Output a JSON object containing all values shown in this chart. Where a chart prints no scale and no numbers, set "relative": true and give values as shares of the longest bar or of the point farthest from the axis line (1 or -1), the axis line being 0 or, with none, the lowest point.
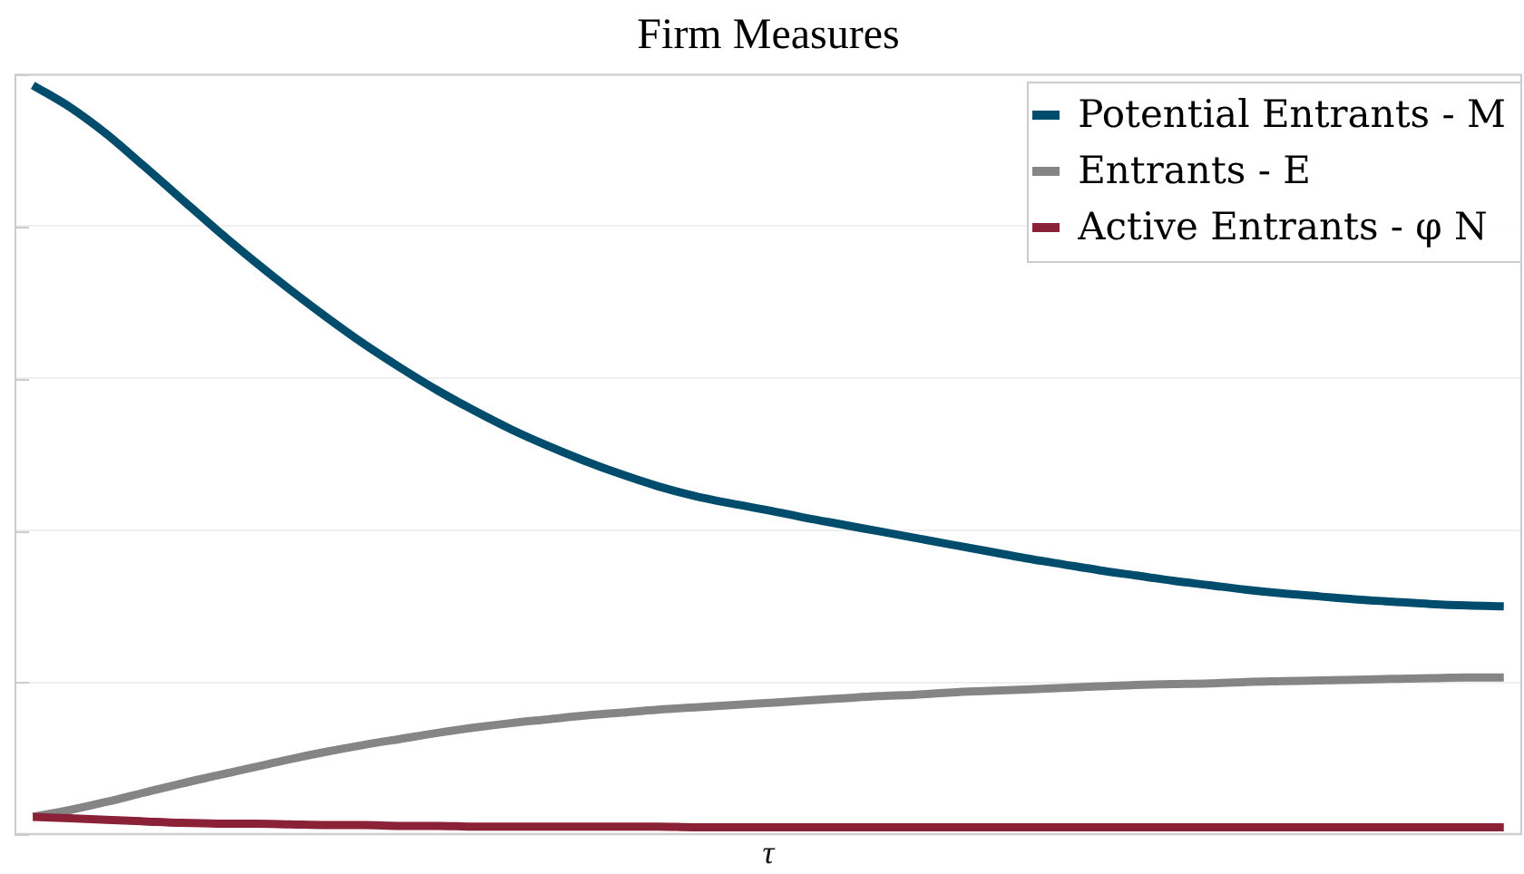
{
  "chart_data": {
    "type": "line",
    "title": "Firm Measures",
    "xlabel": "τ",
    "relative": true,
    "grid": "y",
    "legend": "top right",
    "categories": [
      null,
      null,
      null,
      null,
      null,
      null,
      null,
      null,
      null,
      null,
      null,
      null,
      null,
      null,
      null,
      null,
      null,
      null,
      null,
      null,
      null,
      null,
      null,
      null,
      null,
      null,
      null,
      null,
      null,
      null,
      null,
      null,
      null,
      null,
      null,
      null,
      null,
      null,
      null,
      null,
      null
    ],
    "series": [
      {
        "name": "Potential Entrants - M",
        "color": "#004c6d",
        "values": [
          1.0,
          0.971,
          0.935,
          0.893,
          0.85,
          0.807,
          0.766,
          0.727,
          0.69,
          0.655,
          0.623,
          0.593,
          0.566,
          0.541,
          0.519,
          0.499,
          0.481,
          0.465,
          0.452,
          0.442,
          0.433,
          0.423,
          0.414,
          0.405,
          0.396,
          0.387,
          0.378,
          0.369,
          0.361,
          0.353,
          0.346,
          0.339,
          0.333,
          0.327,
          0.322,
          0.318,
          0.314,
          0.311,
          0.308,
          0.306,
          0.305
        ]
      },
      {
        "name": "Entrants - E",
        "color": "#858585",
        "values": [
          0.024,
          0.033,
          0.044,
          0.056,
          0.068,
          0.079,
          0.09,
          0.101,
          0.111,
          0.12,
          0.128,
          0.136,
          0.143,
          0.149,
          0.154,
          0.159,
          0.163,
          0.167,
          0.17,
          0.173,
          0.176,
          0.179,
          0.182,
          0.185,
          0.187,
          0.19,
          0.192,
          0.194,
          0.196,
          0.198,
          0.2,
          0.201,
          0.202,
          0.204,
          0.205,
          0.206,
          0.207,
          0.208,
          0.209,
          0.21,
          0.21
        ]
      },
      {
        "name": "Active Entrants - φ N",
        "color": "#8b2136",
        "values": [
          0.024,
          0.022,
          0.02,
          0.018,
          0.016,
          0.015,
          0.015,
          0.014,
          0.013,
          0.013,
          0.012,
          0.012,
          0.011,
          0.011,
          0.011,
          0.011,
          0.011,
          0.011,
          0.01,
          0.01,
          0.01,
          0.01,
          0.01,
          0.01,
          0.01,
          0.01,
          0.01,
          0.01,
          0.01,
          0.01,
          0.01,
          0.01,
          0.01,
          0.01,
          0.01,
          0.01,
          0.01,
          0.01,
          0.01,
          0.01,
          0.01
        ]
      }
    ]
  }
}
